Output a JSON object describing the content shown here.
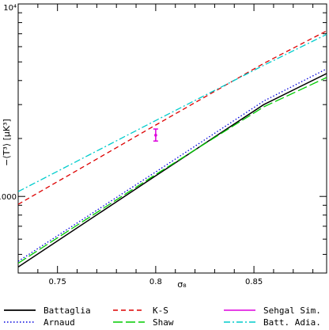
{
  "chart_data": {
    "type": "line",
    "title": "",
    "xlabel": "σ₈",
    "ylabel": "−⟨T³⟩  [μK³]",
    "xlim": [
      0.73,
      0.887
    ],
    "ylim": [
      400,
      10000
    ],
    "y_scale": "log",
    "x_ticks": [
      0.75,
      0.8,
      0.85
    ],
    "x_tick_labels": [
      "0.75",
      "0.8",
      "0.85"
    ],
    "y_ticks": [
      1000,
      10000
    ],
    "y_tick_labels": [
      "1000",
      "10⁴"
    ],
    "legend_position": "bottom",
    "series": [
      {
        "name": "Battaglia",
        "color": "#000000",
        "style": "solid",
        "x": [
          0.73,
          0.8,
          0.855,
          0.887
        ],
        "y": [
          430,
          1280,
          3000,
          4350
        ]
      },
      {
        "name": "Arnaud",
        "color": "#0000dd",
        "style": "dotted",
        "x": [
          0.73,
          0.8,
          0.855,
          0.887
        ],
        "y": [
          460,
          1340,
          3130,
          4600
        ]
      },
      {
        "name": "K-S",
        "color": "#dd0000",
        "style": "dashed",
        "x": [
          0.73,
          0.8,
          0.855,
          0.887
        ],
        "y": [
          910,
          2350,
          4910,
          7250
        ]
      },
      {
        "name": "Shaw",
        "color": "#00cc00",
        "style": "longdash",
        "x": [
          0.73,
          0.8,
          0.855,
          0.887
        ],
        "y": [
          450,
          1300,
          2920,
          4150
        ]
      },
      {
        "name": "Sehgal Sim.",
        "color": "#dd00dd",
        "style": "errorbar",
        "x": [
          0.8
        ],
        "y": [
          2080
        ],
        "y_err_low": [
          1940
        ],
        "y_err_high": [
          2240
        ]
      },
      {
        "name": "Batt. Adia.",
        "color": "#00cccc",
        "style": "dashdot",
        "x": [
          0.73,
          0.8,
          0.855,
          0.887
        ],
        "y": [
          1060,
          2480,
          4800,
          6950
        ]
      }
    ]
  }
}
